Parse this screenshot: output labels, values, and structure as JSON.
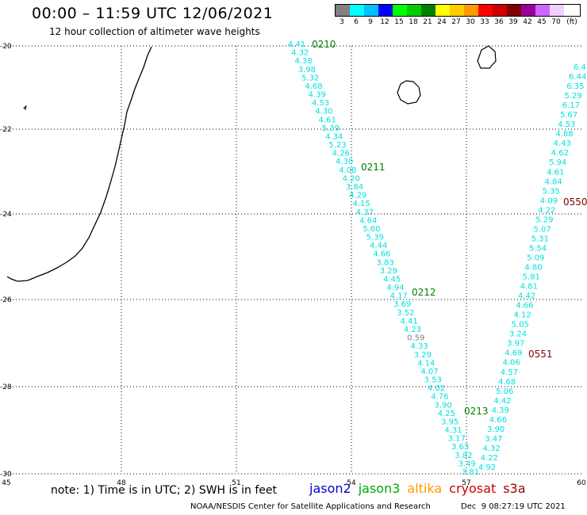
{
  "header": {
    "title": "00:00 – 11:59 UTC 12/06/2021",
    "subtitle": "12 hour collection of altimeter wave heights"
  },
  "legend": {
    "unit": "(ft)",
    "bins": [
      {
        "label": "3",
        "color": "#808080"
      },
      {
        "label": "6",
        "color": "#00ffff"
      },
      {
        "label": "9",
        "color": "#00bfff"
      },
      {
        "label": "12",
        "color": "#0000ff"
      },
      {
        "label": "15",
        "color": "#00ff00"
      },
      {
        "label": "18",
        "color": "#00cc00"
      },
      {
        "label": "21",
        "color": "#008000"
      },
      {
        "label": "24",
        "color": "#ffff00"
      },
      {
        "label": "27",
        "color": "#ffcc00"
      },
      {
        "label": "30",
        "color": "#ff9900"
      },
      {
        "label": "33",
        "color": "#ff0000"
      },
      {
        "label": "36",
        "color": "#cc0000"
      },
      {
        "label": "39",
        "color": "#800000"
      },
      {
        "label": "42",
        "color": "#990099"
      },
      {
        "label": "45",
        "color": "#cc66ff"
      },
      {
        "label": "70",
        "color": "#f0d0ff"
      }
    ]
  },
  "map": {
    "colors": {
      "cyan": "#00e0e0",
      "gray": "#808080",
      "jason3": "#008000",
      "cryosat": "#800000"
    },
    "lon_ticks": [
      "45",
      "48",
      "51",
      "54",
      "57",
      "60"
    ],
    "lat_ticks": [
      "-20",
      "-22",
      "-24",
      "-26",
      "-28",
      "-30"
    ],
    "track_a": {
      "values": [
        "4.41",
        "4.32",
        "4.38",
        "3.98",
        "5.32",
        "4.68",
        "4.39",
        "4.53",
        "4.30",
        "4.61",
        "5.39",
        "4.34",
        "5.23",
        "4.26",
        "4.30",
        "4.08",
        "4.20",
        "3.84",
        "4.29",
        "4.15",
        "4.37",
        "4.64",
        "5.60",
        "5.39",
        "4.44",
        "4.66",
        "3.83",
        "3.29",
        "4.45",
        "4.94",
        "4.17",
        "3.69",
        "3.52",
        "4.41",
        "4.23",
        "0.59",
        "4.33",
        "3.29",
        "4.14",
        "4.07",
        "3.53",
        "4.02",
        "4.76",
        "3.90",
        "4.25",
        "3.95",
        "4.31",
        "3.17",
        "3.63",
        "3.82",
        "3.49",
        "3.81"
      ],
      "time_labels": [
        "0210",
        "0211",
        "0212",
        "0213"
      ]
    },
    "track_b": {
      "values": [
        "6.4",
        "6.44",
        "6.35",
        "5.29",
        "6.17",
        "5.67",
        "4.53",
        "4.88",
        "4.43",
        "4.62",
        "5.94",
        "4.61",
        "4.84",
        "5.35",
        "4.09",
        "4.22",
        "5.29",
        "5.07",
        "5.31",
        "5.54",
        "5.09",
        "4.80",
        "5.81",
        "4.81",
        "4.42",
        "4.66",
        "4.12",
        "5.05",
        "3.24",
        "3.97",
        "4.69",
        "4.06",
        "4.57",
        "4.68",
        "5.06",
        "4.42",
        "4.39",
        "4.66",
        "3.90",
        "3.47",
        "4.32",
        "4.22",
        "4.92"
      ],
      "time_labels": [
        "0550",
        "0551"
      ]
    }
  },
  "footer": {
    "note": "note: 1) Time is in UTC; 2) SWH is in feet",
    "missions": [
      {
        "name": "jason2",
        "color": "#0000cc"
      },
      {
        "name": "jason3",
        "color": "#00aa00"
      },
      {
        "name": "altika",
        "color": "#ff9900"
      },
      {
        "name": "cryosat",
        "color": "#cc0000"
      },
      {
        "name": "s3a",
        "color": "#990000"
      }
    ],
    "credit": "NOAA/NESDIS Center for Satellite Applications and Research",
    "timestamp": "Dec  9 08:27:19 UTC 2021"
  }
}
